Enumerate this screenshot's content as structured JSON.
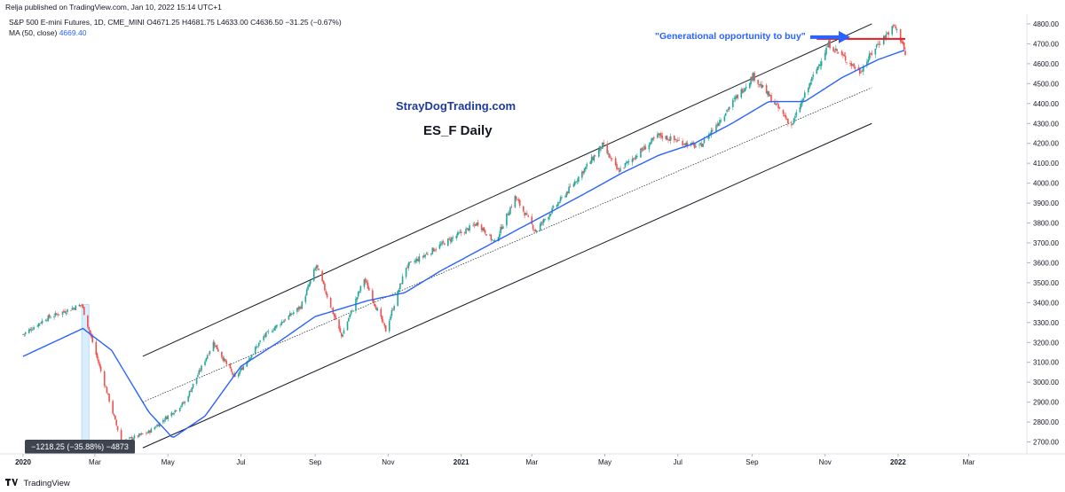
{
  "header": {
    "publisher": "Relja published on TradingView.com, Jan 10, 2022 15:14 UTC+1"
  },
  "legend": {
    "symbol_line": "S&P 500 E-mini Futures, 1D, CME_MINI",
    "open": "O4671.25",
    "high": "H4681.75",
    "low": "L4633.00",
    "close": "C4636.50",
    "change": "−31.25 (−0.67%)",
    "ma_label": "MA (50, close)",
    "ma_value": "4669.40"
  },
  "annotations": {
    "site": "StrayDogTrading.com",
    "title": "ES_F  Daily",
    "callout": "\"Generational opportunity to buy\"",
    "measure": "−1218.25 (−35.88%) −4873"
  },
  "footer": {
    "brand": "TradingView"
  },
  "colors": {
    "up": "#26a69a",
    "down": "#ef5350",
    "ma": "#2962ff",
    "callout": "#2962ff",
    "resistance": "#e51c23",
    "site_text": "#1e3a9a"
  },
  "chart_data": {
    "type": "line",
    "title": "ES_F  Daily",
    "x_tick_labels": [
      "2020",
      "Mar",
      "May",
      "Jul",
      "Sep",
      "Nov",
      "2021",
      "Mar",
      "May",
      "Jul",
      "Sep",
      "Nov",
      "2022",
      "Mar"
    ],
    "y_tick_labels": [
      "2700.00",
      "2800.00",
      "2900.00",
      "3000.00",
      "3100.00",
      "3200.00",
      "3300.00",
      "3400.00",
      "3500.00",
      "3600.00",
      "3700.00",
      "3800.00",
      "3900.00",
      "4000.00",
      "4100.00",
      "4200.00",
      "4300.00",
      "4400.00",
      "4500.00",
      "4600.00",
      "4700.00",
      "4800.00"
    ],
    "ylim": [
      2640,
      4840
    ],
    "price_series": {
      "name": "S&P 500 E-mini Futures",
      "x": [
        "2020-01-01",
        "2020-01-20",
        "2020-02-19",
        "2020-03-23",
        "2020-04-15",
        "2020-05-15",
        "2020-06-08",
        "2020-06-26",
        "2020-07-20",
        "2020-08-20",
        "2020-09-02",
        "2020-09-23",
        "2020-10-12",
        "2020-10-30",
        "2020-11-16",
        "2020-12-15",
        "2021-01-15",
        "2021-01-29",
        "2021-02-15",
        "2021-03-04",
        "2021-03-31",
        "2021-04-29",
        "2021-05-12",
        "2021-06-15",
        "2021-07-19",
        "2021-08-15",
        "2021-09-02",
        "2021-10-04",
        "2021-10-20",
        "2021-11-04",
        "2021-11-30",
        "2021-12-15",
        "2021-12-29",
        "2022-01-05",
        "2022-01-07"
      ],
      "values": [
        3240,
        3320,
        3390,
        2700,
        2750,
        2900,
        3200,
        3020,
        3230,
        3380,
        3585,
        3230,
        3520,
        3260,
        3580,
        3690,
        3800,
        3700,
        3930,
        3760,
        3960,
        4190,
        4060,
        4240,
        4180,
        4400,
        4540,
        4290,
        4510,
        4700,
        4560,
        4700,
        4790,
        4700,
        4636.5
      ]
    },
    "ma_series": {
      "name": "MA (50, close)",
      "x": [
        "2020-01-01",
        "2020-02-20",
        "2020-03-15",
        "2020-04-15",
        "2020-05-05",
        "2020-06-01",
        "2020-07-01",
        "2020-08-01",
        "2020-09-01",
        "2020-10-15",
        "2020-11-15",
        "2020-12-15",
        "2021-01-15",
        "2021-02-15",
        "2021-03-15",
        "2021-04-15",
        "2021-05-15",
        "2021-06-15",
        "2021-07-15",
        "2021-08-15",
        "2021-09-15",
        "2021-10-15",
        "2021-11-15",
        "2021-12-15",
        "2022-01-07"
      ],
      "values": [
        3130,
        3270,
        3160,
        2850,
        2720,
        2830,
        3080,
        3200,
        3330,
        3410,
        3450,
        3560,
        3660,
        3760,
        3850,
        3950,
        4050,
        4140,
        4200,
        4300,
        4410,
        4410,
        4530,
        4620,
        4669.4
      ]
    },
    "trend_channel": {
      "upper": {
        "x": [
          "2020-04-10",
          "2021-12-10"
        ],
        "values": [
          3130,
          4800
        ]
      },
      "lower": {
        "x": [
          "2020-04-10",
          "2021-12-10"
        ],
        "values": [
          2670,
          4300
        ]
      },
      "middle_dotted": {
        "x": [
          "2020-04-10",
          "2021-12-10"
        ],
        "values": [
          2900,
          4480
        ]
      }
    },
    "resistance_level": 4725,
    "measure_box": {
      "x": [
        "2020-02-19",
        "2020-02-25"
      ],
      "values": [
        3390,
        2640
      ]
    }
  }
}
